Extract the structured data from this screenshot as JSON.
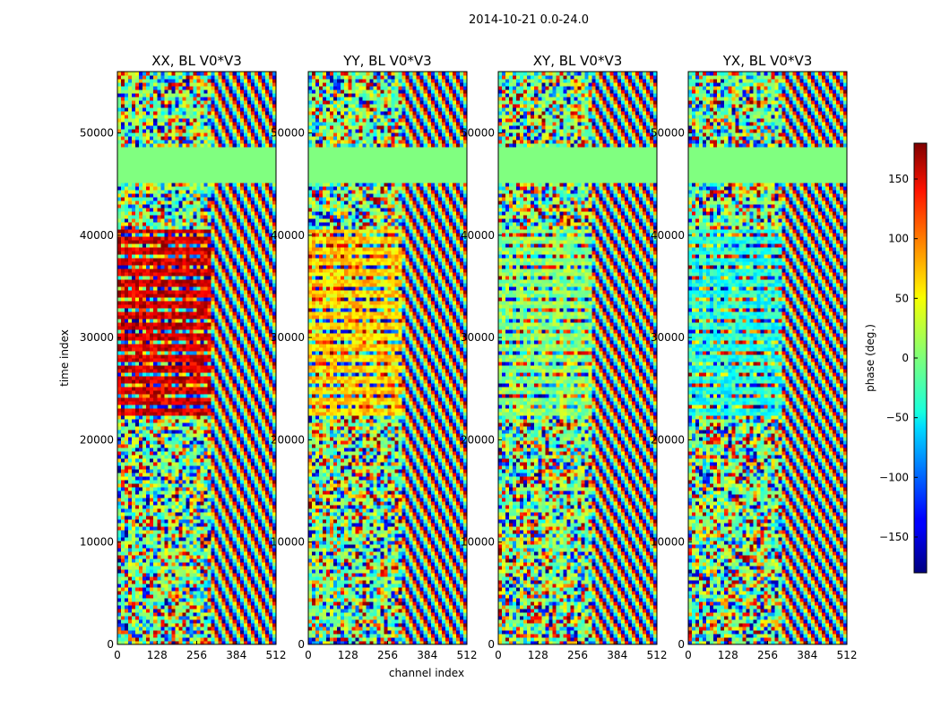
{
  "figure": {
    "suptitle": "2014-10-21 0.0-24.0",
    "xlabel": "channel index",
    "ylabel": "time index"
  },
  "chart_data": {
    "type": "heatmap",
    "colormap": "jet",
    "xlim": [
      0,
      512
    ],
    "ylim": [
      0,
      56000
    ],
    "x_ticks": [
      "0",
      "128",
      "256",
      "384",
      "512"
    ],
    "y_ticks": [
      "0",
      "10000",
      "20000",
      "30000",
      "40000",
      "50000"
    ],
    "x_tick_values": [
      0,
      128,
      256,
      384,
      512
    ],
    "y_tick_values": [
      0,
      10000,
      20000,
      30000,
      40000,
      50000
    ],
    "panels": [
      {
        "title": "XX, BL V0*V3",
        "low_noise_mean": 150
      },
      {
        "title": "YY, BL V0*V3",
        "low_noise_mean": 60
      },
      {
        "title": "XY, BL V0*V3",
        "low_noise_mean": 5
      },
      {
        "title": "YX, BL V0*V3",
        "low_noise_mean": -35
      }
    ],
    "flagged_band": {
      "y_from": 45200,
      "y_to": 48700,
      "value": 0
    },
    "colorbar": {
      "label": "phase (deg.)",
      "range": [
        -180,
        180
      ],
      "ticks": [
        "150",
        "100",
        "50",
        "0",
        "−50",
        "−100",
        "−150"
      ],
      "tick_values": [
        150,
        100,
        50,
        0,
        -50,
        -100,
        -150
      ]
    }
  }
}
